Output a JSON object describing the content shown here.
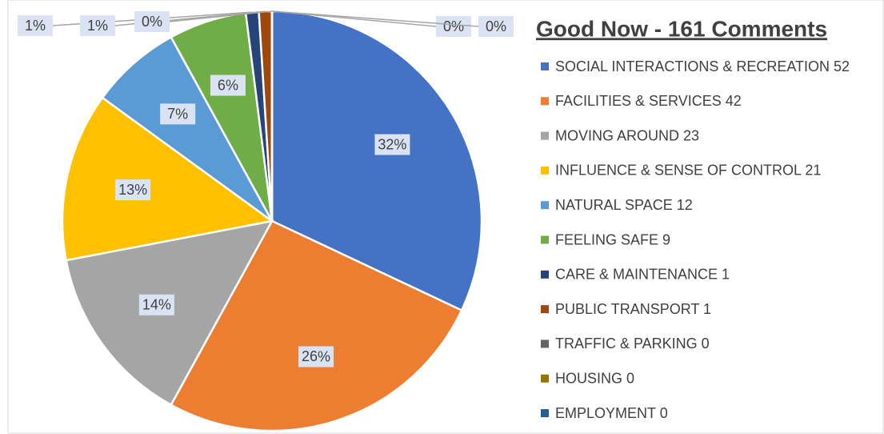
{
  "chart_data": {
    "type": "pie",
    "title": "Good Now - 161 Comments",
    "categories": [
      "SOCIAL INTERACTIONS & RECREATION 52",
      "FACILITIES & SERVICES 42",
      "MOVING AROUND 23",
      "INFLUENCE & SENSE OF CONTROL 21",
      "NATURAL SPACE 12",
      "FEELING SAFE 9",
      "CARE & MAINTENANCE 1",
      "PUBLIC TRANSPORT 1",
      "TRAFFIC & PARKING 0",
      "HOUSING 0",
      "EMPLOYMENT 0"
    ],
    "values": [
      32,
      26,
      14,
      13,
      7,
      6,
      1,
      1,
      0,
      0,
      0
    ],
    "colors": [
      "#4472c4",
      "#ed7d31",
      "#a5a5a5",
      "#ffc000",
      "#5b9bd5",
      "#70ad47",
      "#264478",
      "#9e480e",
      "#636363",
      "#997300",
      "#255e91"
    ],
    "legend": "right"
  }
}
